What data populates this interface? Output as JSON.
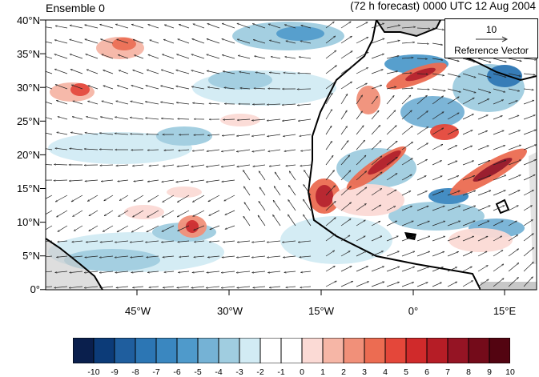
{
  "header": {
    "title_left": "Ensemble 0",
    "title_right": "(72 h forecast) 0000 UTC 12 Aug 2004"
  },
  "map": {
    "lat_labels": [
      "40°N",
      "35°N",
      "30°N",
      "25°N",
      "20°N",
      "15°N",
      "10°N",
      "5°N",
      "0°"
    ],
    "lon_labels": [
      "45°W",
      "30°W",
      "15°W",
      "0°",
      "15°E"
    ],
    "lon_range": [
      -62,
      20
    ],
    "lat_range": [
      0,
      40
    ],
    "land_fill": "#c8c8c8",
    "coast_color": "#000000"
  },
  "reference_vector": {
    "magnitude": "10",
    "label": "Reference Vector"
  },
  "colorbar": {
    "labels": [
      "-10",
      "-9",
      "-8",
      "-7",
      "-6",
      "-5",
      "-4",
      "-3",
      "-2",
      "-1",
      "0",
      "1",
      "2",
      "3",
      "4",
      "5",
      "6",
      "7",
      "8",
      "9",
      "10"
    ],
    "colors": [
      "#0a1f4d",
      "#0c3b78",
      "#1f5e9e",
      "#2c76b4",
      "#3a87c0",
      "#4f9acb",
      "#75b2d5",
      "#a0cde0",
      "#d2ebf4",
      "#ffffff",
      "#ffffff",
      "#fbdad5",
      "#f6b6a6",
      "#f19079",
      "#ec6c52",
      "#e4473a",
      "#d02a2b",
      "#b61d26",
      "#951424",
      "#740b1a",
      "#530411"
    ]
  }
}
